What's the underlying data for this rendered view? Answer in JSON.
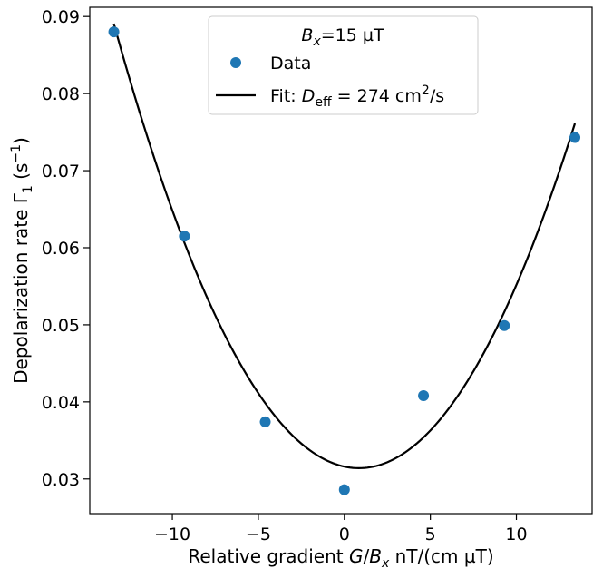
{
  "chart_data": {
    "type": "scatter",
    "xlabel_prefix": "Relative gradient ",
    "xlabel_var_g": "G",
    "xlabel_slash": "/",
    "xlabel_var_b": "B",
    "xlabel_sub_x": "x",
    "xlabel_units": " nT/(cm µT)",
    "ylabel_main": "Depolarization rate Γ",
    "ylabel_sub": "1",
    "ylabel_open": " (s",
    "ylabel_sup": "−1",
    "ylabel_close": ")",
    "xlim": [
      -14.8,
      14.4
    ],
    "ylim": [
      0.0255,
      0.0912
    ],
    "xticks": [
      -10,
      -5,
      0,
      5,
      10
    ],
    "xtick_labels": [
      "−10",
      "−5",
      "0",
      "5",
      "10"
    ],
    "yticks": [
      0.03,
      0.04,
      0.05,
      0.06,
      0.07,
      0.08,
      0.09
    ],
    "ytick_labels": [
      "0.03",
      "0.04",
      "0.05",
      "0.06",
      "0.07",
      "0.08",
      "0.09"
    ],
    "grid": false,
    "legend": {
      "placement": "top-center",
      "title_var": "B",
      "title_sub": "x",
      "title_rest": "=15 µT",
      "data_label": "Data",
      "fit_prefix": "Fit: ",
      "fit_var": "D",
      "fit_sub": "eff",
      "fit_mid": " = 274 cm",
      "fit_sup": "2",
      "fit_end": "/s"
    },
    "series": [
      {
        "kind": "points",
        "color": "#1f77b4",
        "x": [
          -13.4,
          -9.3,
          -4.6,
          0.0,
          4.6,
          9.3,
          13.4
        ],
        "y": [
          0.088,
          0.0615,
          0.0374,
          0.0286,
          0.0408,
          0.0499,
          0.0743
        ]
      },
      {
        "kind": "fit",
        "color": "#000000",
        "x_range": [
          -13.4,
          13.4
        ],
        "vertex_x": 0.85,
        "vertex_y": 0.0314,
        "curvature": 0.000284
      }
    ]
  }
}
